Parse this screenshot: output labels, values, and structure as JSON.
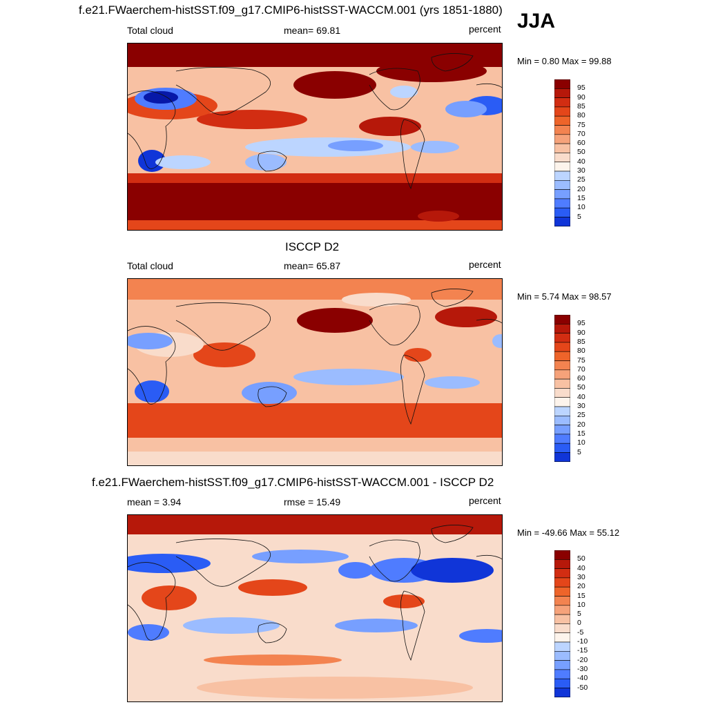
{
  "season": "JJA",
  "colors": {
    "positive": [
      "#f9dccb",
      "#f8c1a3",
      "#f6a27a",
      "#f38350",
      "#ee642a",
      "#e4461a",
      "#d22d12",
      "#b6180a",
      "#8a0000"
    ],
    "negative": [
      "#dbe9ff",
      "#bcd5ff",
      "#9bbcff",
      "#779fff",
      "#4f7cff",
      "#2a5cf5",
      "#1035d8",
      "#0718a8",
      "#000080"
    ],
    "neutral": "#fdf4ec",
    "coast": "#111111"
  },
  "panels": [
    {
      "id": "model",
      "title": "f.e21.FWaerchem-histSST.f09_g17.CMIP6-histSST-WACCM.001 (yrs 1851-1880)",
      "left_label": "Total cloud",
      "center_label": "mean=  69.81",
      "right_label": "percent",
      "minmax": "Min =   0.80 Max =  99.88",
      "ticks": [
        "95",
        "90",
        "85",
        "80",
        "75",
        "70",
        "60",
        "50",
        "40",
        "30",
        "25",
        "20",
        "15",
        "10",
        "5"
      ],
      "field": {
        "variable": "Total cloud",
        "units": "percent",
        "mean": 69.81,
        "min": 0.8,
        "max": 99.88,
        "contour_levels": [
          5,
          10,
          15,
          20,
          25,
          30,
          40,
          50,
          60,
          70,
          75,
          80,
          85,
          90,
          95
        ]
      }
    },
    {
      "id": "obs",
      "title": "ISCCP D2",
      "left_label": "Total cloud",
      "center_label": "mean=  65.87",
      "right_label": "percent",
      "minmax": "Min =   5.74 Max =  98.57",
      "ticks": [
        "95",
        "90",
        "85",
        "80",
        "75",
        "70",
        "60",
        "50",
        "40",
        "30",
        "25",
        "20",
        "15",
        "10",
        "5"
      ],
      "field": {
        "variable": "Total cloud",
        "units": "percent",
        "mean": 65.87,
        "min": 5.74,
        "max": 98.57,
        "contour_levels": [
          5,
          10,
          15,
          20,
          25,
          30,
          40,
          50,
          60,
          70,
          75,
          80,
          85,
          90,
          95
        ]
      }
    },
    {
      "id": "diff",
      "title": "f.e21.FWaerchem-histSST.f09_g17.CMIP6-histSST-WACCM.001 - ISCCP D2",
      "left_label": "mean =   3.94",
      "center_label": "rmse =  15.49",
      "right_label": "percent",
      "minmax": "Min = -49.66 Max =  55.12",
      "ticks": [
        "50",
        "40",
        "30",
        "20",
        "15",
        "10",
        "5",
        "0",
        "-5",
        "-10",
        "-15",
        "-20",
        "-30",
        "-40",
        "-50"
      ],
      "field": {
        "variable": "Total cloud difference",
        "units": "percent",
        "mean": 3.94,
        "rmse": 15.49,
        "min": -49.66,
        "max": 55.12,
        "contour_levels": [
          -50,
          -40,
          -30,
          -20,
          -15,
          -10,
          -5,
          0,
          5,
          10,
          15,
          20,
          30,
          40,
          50
        ]
      }
    }
  ],
  "chart_data": [
    {
      "type": "heatmap",
      "title": "f.e21.FWaerchem-histSST.f09_g17.CMIP6-histSST-WACCM.001 (yrs 1851-1880)",
      "season": "JJA",
      "variable": "Total cloud",
      "units": "percent",
      "mean": 69.81,
      "min": 0.8,
      "max": 99.88,
      "levels": [
        5,
        10,
        15,
        20,
        25,
        30,
        40,
        50,
        60,
        70,
        75,
        80,
        85,
        90,
        95
      ],
      "xlim": [
        0,
        360
      ],
      "ylim": [
        -90,
        90
      ]
    },
    {
      "type": "heatmap",
      "title": "ISCCP D2",
      "season": "JJA",
      "variable": "Total cloud",
      "units": "percent",
      "mean": 65.87,
      "min": 5.74,
      "max": 98.57,
      "levels": [
        5,
        10,
        15,
        20,
        25,
        30,
        40,
        50,
        60,
        70,
        75,
        80,
        85,
        90,
        95
      ],
      "xlim": [
        0,
        360
      ],
      "ylim": [
        -90,
        90
      ]
    },
    {
      "type": "heatmap",
      "title": "f.e21.FWaerchem-histSST.f09_g17.CMIP6-histSST-WACCM.001 - ISCCP D2",
      "season": "JJA",
      "variable": "Total cloud",
      "units": "percent",
      "mean": 3.94,
      "rmse": 15.49,
      "min": -49.66,
      "max": 55.12,
      "levels": [
        -50,
        -40,
        -30,
        -20,
        -15,
        -10,
        -5,
        0,
        5,
        10,
        15,
        20,
        30,
        40,
        50
      ],
      "xlim": [
        0,
        360
      ],
      "ylim": [
        -90,
        90
      ]
    }
  ]
}
